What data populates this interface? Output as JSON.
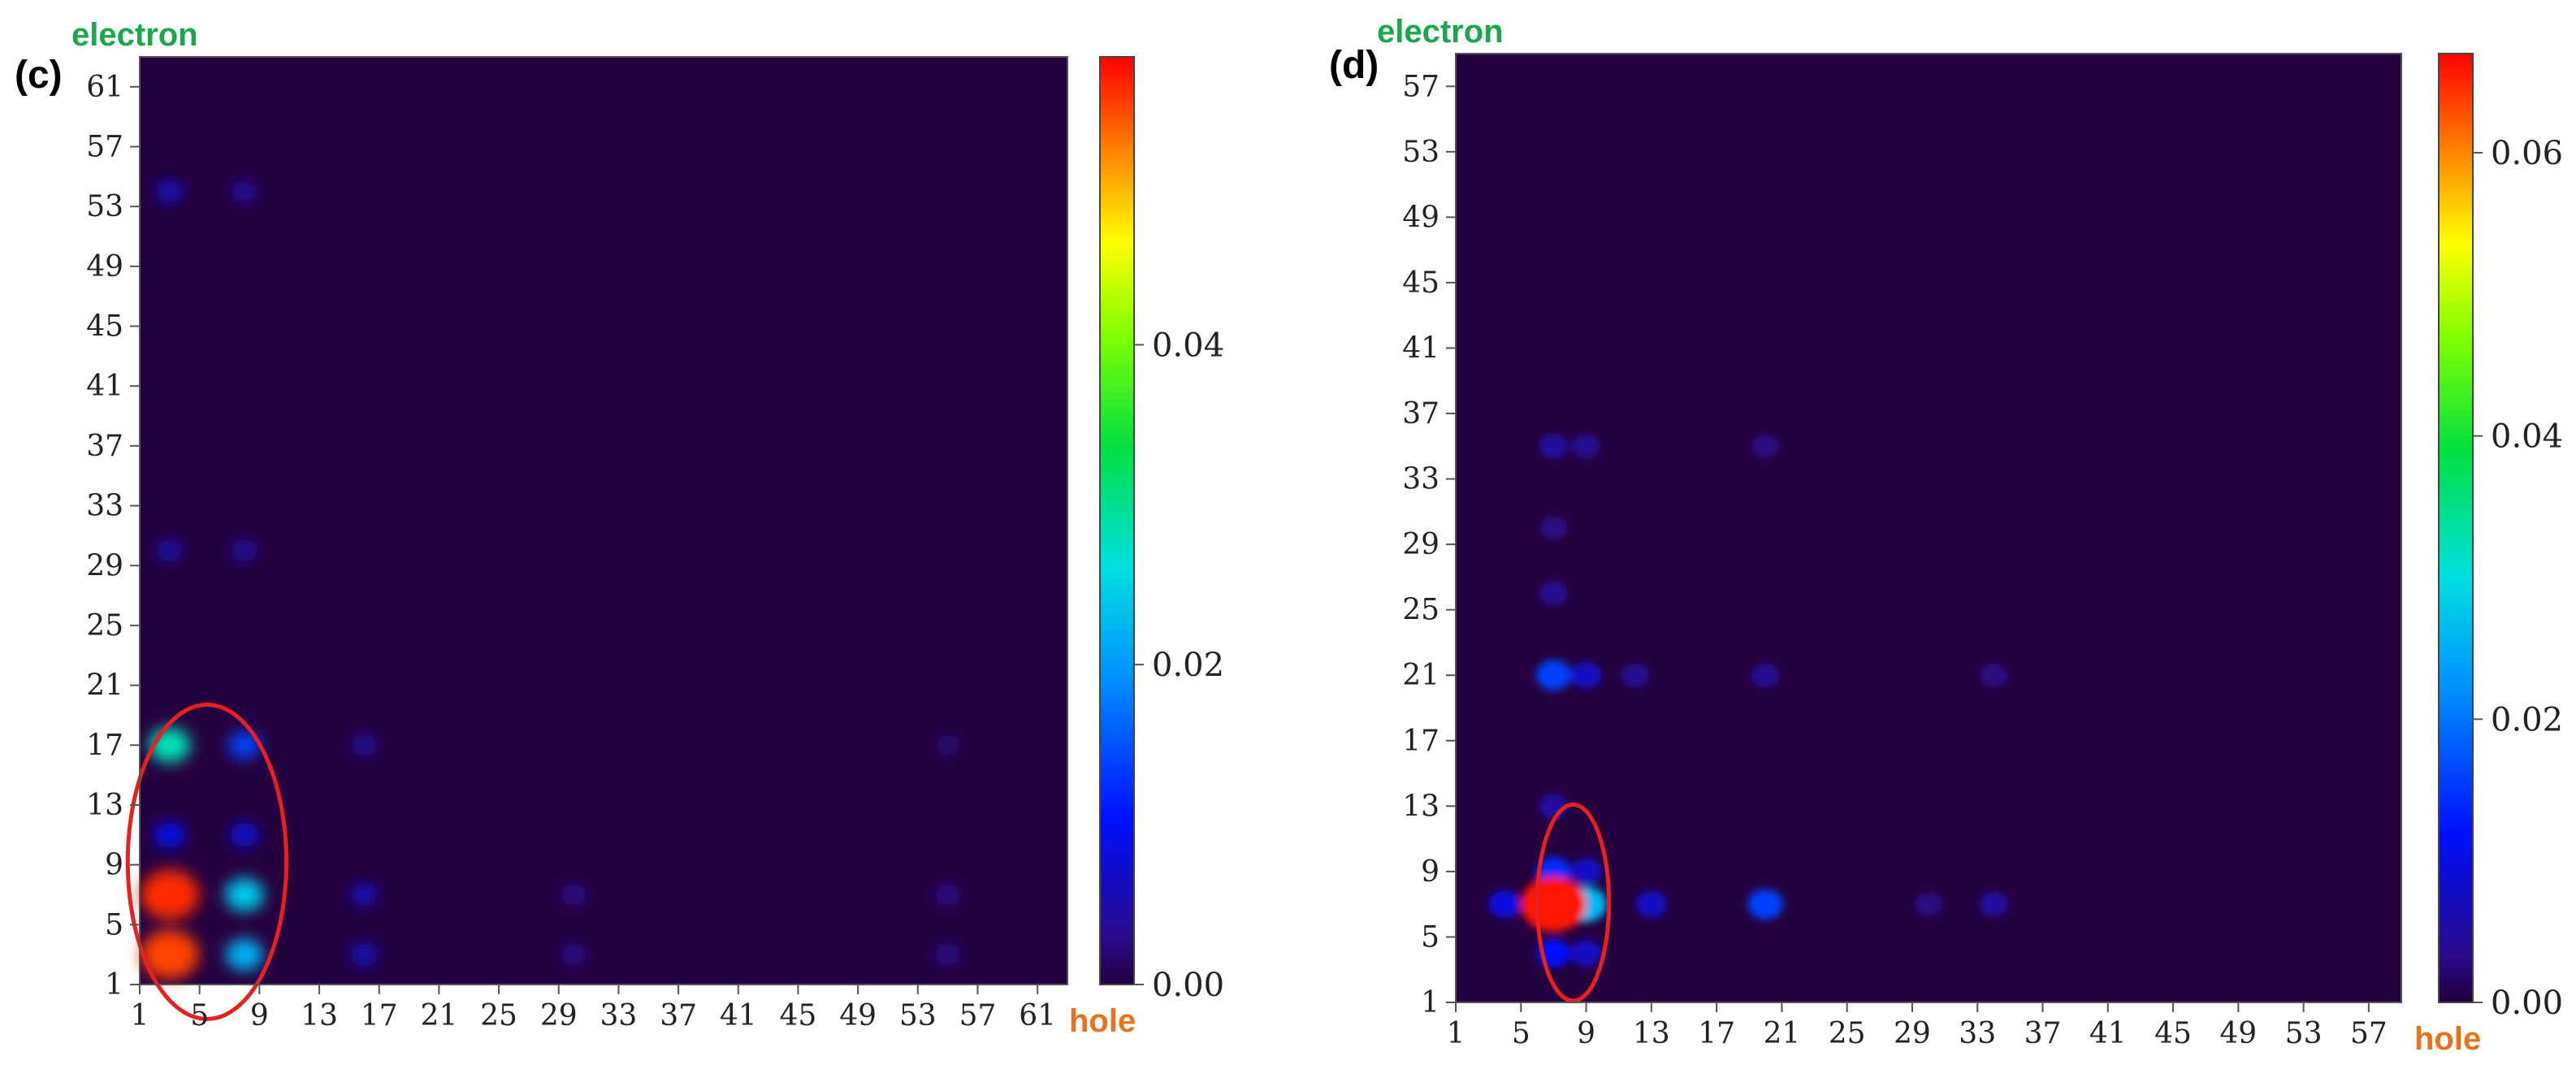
{
  "panels": [
    {
      "panel_label": "(c)",
      "ylabel": "electron",
      "xlabel": "hole",
      "x_ticks": [
        "1",
        "5",
        "9",
        "13",
        "17",
        "21",
        "25",
        "29",
        "33",
        "37",
        "41",
        "45",
        "49",
        "53",
        "57",
        "61"
      ],
      "y_ticks": [
        "1",
        "5",
        "9",
        "13",
        "17",
        "21",
        "25",
        "29",
        "33",
        "37",
        "41",
        "45",
        "49",
        "53",
        "57",
        "61"
      ],
      "colorbar_ticks": [
        "0.00",
        "0.02",
        "0.04"
      ],
      "colorbar_max": 0.058
    },
    {
      "panel_label": "(d)",
      "ylabel": "electron",
      "xlabel": "hole",
      "x_ticks": [
        "1",
        "5",
        "9",
        "13",
        "17",
        "21",
        "25",
        "29",
        "33",
        "37",
        "41",
        "45",
        "49",
        "53",
        "57"
      ],
      "y_ticks": [
        "1",
        "5",
        "9",
        "13",
        "17",
        "21",
        "25",
        "29",
        "33",
        "37",
        "41",
        "45",
        "49",
        "53",
        "57"
      ],
      "colorbar_ticks": [
        "0.00",
        "0.02",
        "0.04",
        "0.06"
      ],
      "colorbar_max": 0.067
    }
  ],
  "chart_data": [
    {
      "type": "heatmap",
      "title": "(c)",
      "xlabel": "hole",
      "ylabel": "electron",
      "xlim": [
        1,
        63
      ],
      "ylim": [
        1,
        63
      ],
      "zlim": [
        0,
        0.058
      ],
      "colormap": "rainbow",
      "annotation": "red ellipse around hole 1-10, electron 1-18",
      "ellipse": {
        "cx": 5.5,
        "cy": 9.2,
        "rx": 5.3,
        "ry": 10.5
      },
      "hotspots": [
        {
          "x": 3,
          "y": 3,
          "value": 0.055
        },
        {
          "x": 3,
          "y": 7,
          "value": 0.056
        },
        {
          "x": 3,
          "y": 17,
          "value": 0.028
        },
        {
          "x": 8,
          "y": 3,
          "value": 0.022
        },
        {
          "x": 8,
          "y": 7,
          "value": 0.024
        },
        {
          "x": 8,
          "y": 17,
          "value": 0.014
        },
        {
          "x": 3,
          "y": 11,
          "value": 0.01
        },
        {
          "x": 8,
          "y": 11,
          "value": 0.008
        },
        {
          "x": 16,
          "y": 3,
          "value": 0.006
        },
        {
          "x": 16,
          "y": 7,
          "value": 0.006
        },
        {
          "x": 16,
          "y": 17,
          "value": 0.004
        },
        {
          "x": 3,
          "y": 30,
          "value": 0.005
        },
        {
          "x": 8,
          "y": 30,
          "value": 0.004
        },
        {
          "x": 3,
          "y": 54,
          "value": 0.006
        },
        {
          "x": 8,
          "y": 54,
          "value": 0.004
        },
        {
          "x": 30,
          "y": 3,
          "value": 0.003
        },
        {
          "x": 30,
          "y": 7,
          "value": 0.003
        },
        {
          "x": 55,
          "y": 3,
          "value": 0.003
        },
        {
          "x": 55,
          "y": 7,
          "value": 0.003
        },
        {
          "x": 55,
          "y": 17,
          "value": 0.002
        }
      ]
    },
    {
      "type": "heatmap",
      "title": "(d)",
      "xlabel": "hole",
      "ylabel": "electron",
      "xlim": [
        1,
        59
      ],
      "ylim": [
        1,
        59
      ],
      "zlim": [
        0,
        0.067
      ],
      "colormap": "rainbow",
      "annotation": "red ellipse around hole 6-10, electron 1-13",
      "ellipse": {
        "cx": 8.2,
        "cy": 7.1,
        "rx": 2.2,
        "ry": 6.0
      },
      "hotspots": [
        {
          "x": 7,
          "y": 7,
          "value": 0.066
        },
        {
          "x": 9,
          "y": 7,
          "value": 0.026
        },
        {
          "x": 7,
          "y": 4,
          "value": 0.012
        },
        {
          "x": 7,
          "y": 9,
          "value": 0.014
        },
        {
          "x": 9,
          "y": 4,
          "value": 0.008
        },
        {
          "x": 9,
          "y": 9,
          "value": 0.008
        },
        {
          "x": 4,
          "y": 7,
          "value": 0.01
        },
        {
          "x": 13,
          "y": 7,
          "value": 0.008
        },
        {
          "x": 20,
          "y": 7,
          "value": 0.016
        },
        {
          "x": 34,
          "y": 7,
          "value": 0.005
        },
        {
          "x": 30,
          "y": 7,
          "value": 0.003
        },
        {
          "x": 7,
          "y": 21,
          "value": 0.016
        },
        {
          "x": 9,
          "y": 21,
          "value": 0.008
        },
        {
          "x": 12,
          "y": 21,
          "value": 0.004
        },
        {
          "x": 20,
          "y": 21,
          "value": 0.004
        },
        {
          "x": 34,
          "y": 21,
          "value": 0.003
        },
        {
          "x": 7,
          "y": 13,
          "value": 0.005
        },
        {
          "x": 7,
          "y": 35,
          "value": 0.005
        },
        {
          "x": 9,
          "y": 35,
          "value": 0.004
        },
        {
          "x": 20,
          "y": 35,
          "value": 0.003
        },
        {
          "x": 7,
          "y": 26,
          "value": 0.004
        },
        {
          "x": 7,
          "y": 30,
          "value": 0.003
        }
      ]
    }
  ]
}
